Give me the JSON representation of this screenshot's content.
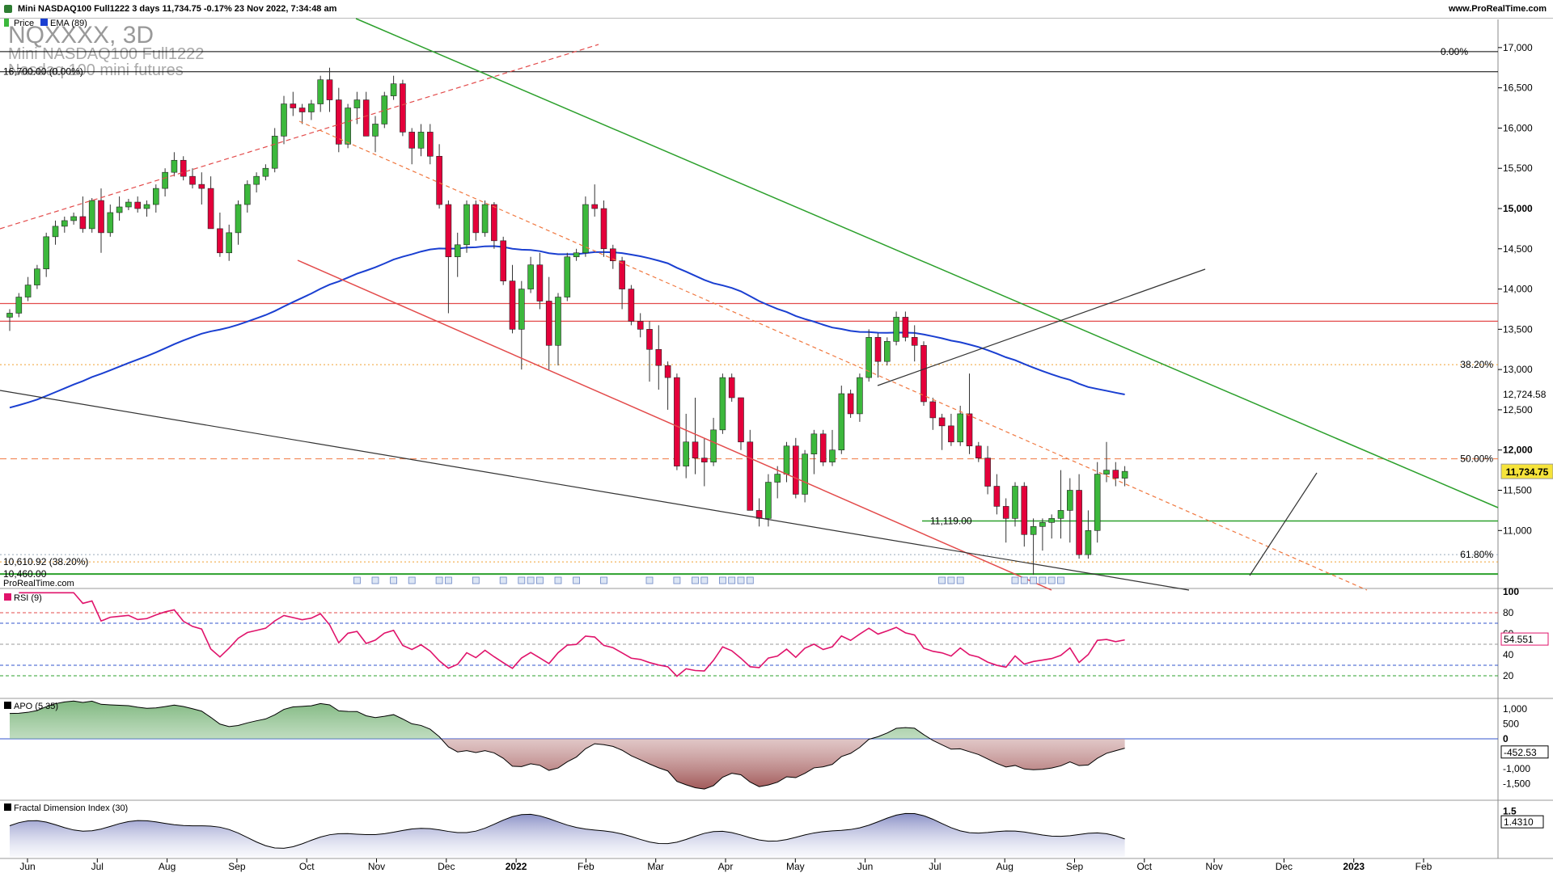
{
  "header": {
    "info": "Mini NASDAQ100 Full1222 3 days 11,734.75 -0.17% 23 Nov 2022, 7:34:48 am",
    "site": "www.ProRealTime.com"
  },
  "watermark": {
    "symbol": "NQXXXX, 3D",
    "name": "Mini NASDAQ100 Full1222",
    "desc": "Nasdaq 100 mini futures"
  },
  "legends": {
    "price": "Price",
    "ema": "EMA (89)",
    "rsi": "RSI (9)",
    "apo": "APO (5 35)",
    "fdi": "Fractal Dimension Index (30)",
    "source": "ProRealTime.com"
  },
  "colors": {
    "up": "#3cb83c",
    "down": "#e4003a",
    "ema": "#1a3fd1",
    "rsi": "#e0136b",
    "trend_green": "#2ca02c",
    "trend_red": "#e34b4b",
    "fib": "#f0a030"
  },
  "chart_data": [
    {
      "type": "candlestick",
      "title": "Mini NASDAQ100 Full1222",
      "y_ticks": [
        "11,000",
        "11,500",
        "12,000",
        "12,500",
        "13,000",
        "13,500",
        "14,000",
        "14,500",
        "15,000",
        "15,500",
        "16,000",
        "16,500",
        "17,000"
      ],
      "ylim": [
        10300,
        17350
      ],
      "x_ticks": [
        "Jun",
        "Jul",
        "Aug",
        "Sep",
        "Oct",
        "Nov",
        "Dec",
        "2022",
        "Feb",
        "Mar",
        "Apr",
        "May",
        "Jun",
        "Jul",
        "Aug",
        "Sep",
        "Oct",
        "Nov",
        "Dec",
        "2023",
        "Feb"
      ],
      "last_price": "11,734.75",
      "ema_value": "12,724.58",
      "ema_period": 89,
      "levels": [
        {
          "label": "16,700.00 (0.00%)",
          "value": 16700
        },
        {
          "label": "0.00%",
          "value": 16950
        },
        {
          "label": "38.20%",
          "value": 13060
        },
        {
          "label": "50.00%",
          "value": 11890
        },
        {
          "label": "61.80%",
          "value": 10700
        },
        {
          "label": "10,610.92 (38.20%)",
          "value": 10610
        },
        {
          "label": "10,460.00",
          "value": 10460
        },
        {
          "label": "11,119.00",
          "value": 11119
        }
      ],
      "horizontal_lines": [
        13820,
        13600
      ],
      "candles": [
        {
          "o": 13650,
          "h": 13750,
          "l": 13480,
          "c": 13700
        },
        {
          "o": 13700,
          "h": 13950,
          "l": 13650,
          "c": 13900
        },
        {
          "o": 13900,
          "h": 14150,
          "l": 13850,
          "c": 14050
        },
        {
          "o": 14050,
          "h": 14300,
          "l": 14000,
          "c": 14250
        },
        {
          "o": 14250,
          "h": 14700,
          "l": 14150,
          "c": 14650
        },
        {
          "o": 14650,
          "h": 14850,
          "l": 14550,
          "c": 14780
        },
        {
          "o": 14780,
          "h": 14900,
          "l": 14700,
          "c": 14850
        },
        {
          "o": 14850,
          "h": 14950,
          "l": 14800,
          "c": 14900
        },
        {
          "o": 14900,
          "h": 15150,
          "l": 14700,
          "c": 14750
        },
        {
          "o": 14750,
          "h": 15130,
          "l": 14700,
          "c": 15100
        },
        {
          "o": 15100,
          "h": 15250,
          "l": 14450,
          "c": 14700
        },
        {
          "o": 14700,
          "h": 15050,
          "l": 14650,
          "c": 14950
        },
        {
          "o": 14950,
          "h": 15150,
          "l": 14850,
          "c": 15020
        },
        {
          "o": 15020,
          "h": 15120,
          "l": 14980,
          "c": 15080
        },
        {
          "o": 15080,
          "h": 15150,
          "l": 14950,
          "c": 15000
        },
        {
          "o": 15000,
          "h": 15100,
          "l": 14900,
          "c": 15050
        },
        {
          "o": 15050,
          "h": 15300,
          "l": 14950,
          "c": 15250
        },
        {
          "o": 15250,
          "h": 15500,
          "l": 15150,
          "c": 15450
        },
        {
          "o": 15450,
          "h": 15700,
          "l": 15400,
          "c": 15600
        },
        {
          "o": 15600,
          "h": 15650,
          "l": 15350,
          "c": 15400
        },
        {
          "o": 15400,
          "h": 15500,
          "l": 15250,
          "c": 15300
        },
        {
          "o": 15300,
          "h": 15450,
          "l": 15050,
          "c": 15250
        },
        {
          "o": 15250,
          "h": 15400,
          "l": 14750,
          "c": 14750
        },
        {
          "o": 14750,
          "h": 14950,
          "l": 14400,
          "c": 14450
        },
        {
          "o": 14450,
          "h": 14800,
          "l": 14350,
          "c": 14700
        },
        {
          "o": 14700,
          "h": 15100,
          "l": 14550,
          "c": 15050
        },
        {
          "o": 15050,
          "h": 15350,
          "l": 14950,
          "c": 15300
        },
        {
          "o": 15300,
          "h": 15450,
          "l": 15200,
          "c": 15400
        },
        {
          "o": 15400,
          "h": 15550,
          "l": 15350,
          "c": 15500
        },
        {
          "o": 15500,
          "h": 16000,
          "l": 15450,
          "c": 15900
        },
        {
          "o": 15900,
          "h": 16400,
          "l": 15800,
          "c": 16300
        },
        {
          "o": 16300,
          "h": 16450,
          "l": 16150,
          "c": 16250
        },
        {
          "o": 16250,
          "h": 16300,
          "l": 16050,
          "c": 16200
        },
        {
          "o": 16200,
          "h": 16350,
          "l": 16100,
          "c": 16300
        },
        {
          "o": 16300,
          "h": 16650,
          "l": 16200,
          "c": 16600
        },
        {
          "o": 16600,
          "h": 16750,
          "l": 16200,
          "c": 16350
        },
        {
          "o": 16350,
          "h": 16500,
          "l": 15700,
          "c": 15800
        },
        {
          "o": 15800,
          "h": 16300,
          "l": 15750,
          "c": 16250
        },
        {
          "o": 16250,
          "h": 16450,
          "l": 16050,
          "c": 16350
        },
        {
          "o": 16350,
          "h": 16450,
          "l": 15900,
          "c": 15900
        },
        {
          "o": 15900,
          "h": 16150,
          "l": 15700,
          "c": 16050
        },
        {
          "o": 16050,
          "h": 16450,
          "l": 16000,
          "c": 16400
        },
        {
          "o": 16400,
          "h": 16650,
          "l": 16350,
          "c": 16550
        },
        {
          "o": 16550,
          "h": 16600,
          "l": 15900,
          "c": 15950
        },
        {
          "o": 15950,
          "h": 16000,
          "l": 15550,
          "c": 15750
        },
        {
          "o": 15750,
          "h": 16050,
          "l": 15650,
          "c": 15950
        },
        {
          "o": 15950,
          "h": 16050,
          "l": 15550,
          "c": 15650
        },
        {
          "o": 15650,
          "h": 15800,
          "l": 15000,
          "c": 15050
        },
        {
          "o": 15050,
          "h": 15100,
          "l": 13700,
          "c": 14400
        },
        {
          "o": 14400,
          "h": 14700,
          "l": 14150,
          "c": 14550
        },
        {
          "o": 14550,
          "h": 15100,
          "l": 14450,
          "c": 15050
        },
        {
          "o": 15050,
          "h": 15100,
          "l": 14600,
          "c": 14700
        },
        {
          "o": 14700,
          "h": 15100,
          "l": 14650,
          "c": 15050
        },
        {
          "o": 15050,
          "h": 15080,
          "l": 14500,
          "c": 14600
        },
        {
          "o": 14600,
          "h": 14650,
          "l": 14050,
          "c": 14100
        },
        {
          "o": 14100,
          "h": 14300,
          "l": 13450,
          "c": 13500
        },
        {
          "o": 13500,
          "h": 14100,
          "l": 13000,
          "c": 14000
        },
        {
          "o": 14000,
          "h": 14400,
          "l": 13950,
          "c": 14300
        },
        {
          "o": 14300,
          "h": 14450,
          "l": 13750,
          "c": 13850
        },
        {
          "o": 13850,
          "h": 14150,
          "l": 13000,
          "c": 13300
        },
        {
          "o": 13300,
          "h": 13950,
          "l": 13050,
          "c": 13900
        },
        {
          "o": 13900,
          "h": 14450,
          "l": 13850,
          "c": 14400
        },
        {
          "o": 14400,
          "h": 14500,
          "l": 14350,
          "c": 14450
        },
        {
          "o": 14450,
          "h": 15150,
          "l": 14400,
          "c": 15050
        },
        {
          "o": 15050,
          "h": 15300,
          "l": 14900,
          "c": 15000
        },
        {
          "o": 15000,
          "h": 15100,
          "l": 14400,
          "c": 14500
        },
        {
          "o": 14500,
          "h": 14550,
          "l": 14250,
          "c": 14350
        },
        {
          "o": 14350,
          "h": 14400,
          "l": 13750,
          "c": 14000
        },
        {
          "o": 14000,
          "h": 14050,
          "l": 13550,
          "c": 13600
        },
        {
          "o": 13600,
          "h": 13700,
          "l": 13400,
          "c": 13500
        },
        {
          "o": 13500,
          "h": 13600,
          "l": 12850,
          "c": 13250
        },
        {
          "o": 13250,
          "h": 13550,
          "l": 12750,
          "c": 13050
        },
        {
          "o": 13050,
          "h": 13100,
          "l": 12500,
          "c": 12900
        },
        {
          "o": 12900,
          "h": 12950,
          "l": 11750,
          "c": 11800
        },
        {
          "o": 11800,
          "h": 12450,
          "l": 11650,
          "c": 12100
        },
        {
          "o": 12100,
          "h": 12650,
          "l": 11700,
          "c": 11900
        },
        {
          "o": 11900,
          "h": 12150,
          "l": 11550,
          "c": 11850
        },
        {
          "o": 11850,
          "h": 12400,
          "l": 11800,
          "c": 12250
        },
        {
          "o": 12250,
          "h": 12950,
          "l": 12200,
          "c": 12900
        },
        {
          "o": 12900,
          "h": 12950,
          "l": 12600,
          "c": 12650
        },
        {
          "o": 12650,
          "h": 12650,
          "l": 12000,
          "c": 12100
        },
        {
          "o": 12100,
          "h": 12250,
          "l": 11250,
          "c": 11250
        },
        {
          "o": 11250,
          "h": 11400,
          "l": 11050,
          "c": 11150
        },
        {
          "o": 11150,
          "h": 11700,
          "l": 11050,
          "c": 11600
        },
        {
          "o": 11600,
          "h": 11800,
          "l": 11400,
          "c": 11700
        },
        {
          "o": 11700,
          "h": 12100,
          "l": 11600,
          "c": 12050
        },
        {
          "o": 12050,
          "h": 12150,
          "l": 11400,
          "c": 11450
        },
        {
          "o": 11450,
          "h": 12000,
          "l": 11350,
          "c": 11950
        },
        {
          "o": 11950,
          "h": 12250,
          "l": 11700,
          "c": 12200
        },
        {
          "o": 12200,
          "h": 12250,
          "l": 11800,
          "c": 11850
        },
        {
          "o": 11850,
          "h": 12250,
          "l": 11800,
          "c": 12000
        },
        {
          "o": 12000,
          "h": 12800,
          "l": 11950,
          "c": 12700
        },
        {
          "o": 12700,
          "h": 12750,
          "l": 12400,
          "c": 12450
        },
        {
          "o": 12450,
          "h": 12950,
          "l": 12350,
          "c": 12900
        },
        {
          "o": 12900,
          "h": 13500,
          "l": 12850,
          "c": 13400
        },
        {
          "o": 13400,
          "h": 13450,
          "l": 12900,
          "c": 13100
        },
        {
          "o": 13100,
          "h": 13400,
          "l": 13050,
          "c": 13350
        },
        {
          "o": 13350,
          "h": 13720,
          "l": 13300,
          "c": 13650
        },
        {
          "o": 13650,
          "h": 13720,
          "l": 13350,
          "c": 13400
        },
        {
          "o": 13400,
          "h": 13550,
          "l": 13100,
          "c": 13300
        },
        {
          "o": 13300,
          "h": 13350,
          "l": 12550,
          "c": 12600
        },
        {
          "o": 12600,
          "h": 12650,
          "l": 12250,
          "c": 12400
        },
        {
          "o": 12400,
          "h": 12450,
          "l": 12000,
          "c": 12300
        },
        {
          "o": 12300,
          "h": 12450,
          "l": 12050,
          "c": 12100
        },
        {
          "o": 12100,
          "h": 12550,
          "l": 12050,
          "c": 12450
        },
        {
          "o": 12450,
          "h": 12950,
          "l": 11950,
          "c": 12050
        },
        {
          "o": 12050,
          "h": 12100,
          "l": 11850,
          "c": 11900
        },
        {
          "o": 11900,
          "h": 12050,
          "l": 11450,
          "c": 11550
        },
        {
          "o": 11550,
          "h": 11700,
          "l": 11200,
          "c": 11300
        },
        {
          "o": 11300,
          "h": 11400,
          "l": 10850,
          "c": 11150
        },
        {
          "o": 11150,
          "h": 11600,
          "l": 11050,
          "c": 11550
        },
        {
          "o": 11550,
          "h": 11600,
          "l": 10800,
          "c": 10950
        },
        {
          "o": 10950,
          "h": 11150,
          "l": 10450,
          "c": 11050
        },
        {
          "o": 11050,
          "h": 11150,
          "l": 10750,
          "c": 11100
        },
        {
          "o": 11100,
          "h": 11200,
          "l": 10900,
          "c": 11150
        },
        {
          "o": 11150,
          "h": 11750,
          "l": 10900,
          "c": 11250
        },
        {
          "o": 11250,
          "h": 11650,
          "l": 10850,
          "c": 11500
        },
        {
          "o": 11500,
          "h": 11700,
          "l": 10650,
          "c": 10700
        },
        {
          "o": 10700,
          "h": 11250,
          "l": 10650,
          "c": 11000
        },
        {
          "o": 11000,
          "h": 11850,
          "l": 10850,
          "c": 11700
        },
        {
          "o": 11700,
          "h": 12100,
          "l": 11600,
          "c": 11750
        },
        {
          "o": 11750,
          "h": 11850,
          "l": 11550,
          "c": 11650
        },
        {
          "o": 11650,
          "h": 11800,
          "l": 11550,
          "c": 11734.75
        }
      ]
    },
    {
      "type": "line",
      "title": "RSI (9)",
      "ylim": [
        0,
        100
      ],
      "y_ticks": [
        "20",
        "40",
        "60",
        "80",
        "100"
      ],
      "levels": [
        80,
        70,
        50,
        30,
        20
      ],
      "last_value": "54.551"
    },
    {
      "type": "area",
      "title": "APO (5 35)",
      "ylim": [
        -2000,
        1300
      ],
      "y_ticks": [
        "-1,500",
        "-1,000",
        "-500",
        "0",
        "500",
        "1,000"
      ],
      "last_value": "-452.53"
    },
    {
      "type": "area",
      "title": "Fractal Dimension Index (30)",
      "ylim": [
        1.0,
        1.6
      ],
      "y_ticks": [
        "1.4",
        "1.5"
      ],
      "last_value": "1.4310"
    }
  ]
}
